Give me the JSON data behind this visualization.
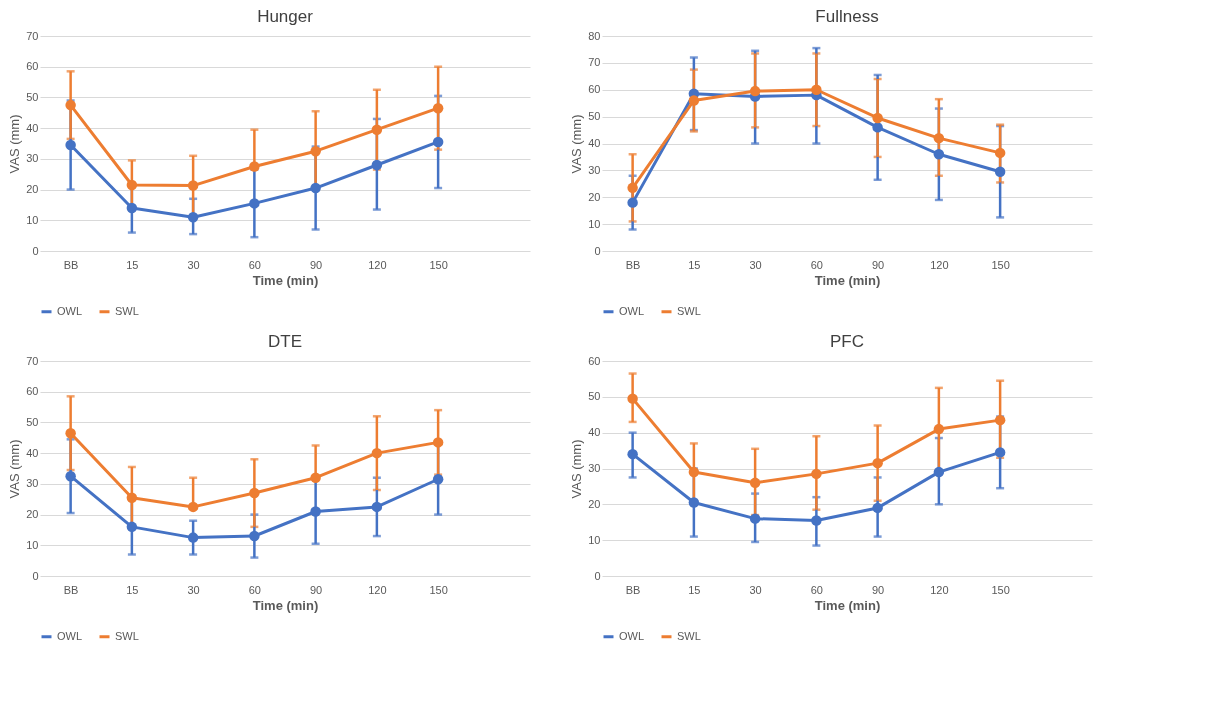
{
  "chart_data": [
    {
      "type": "line",
      "title": "Hunger",
      "xlabel": "Time (min)",
      "ylabel": "VAS (mm)",
      "categories": [
        "BB",
        "15",
        "30",
        "60",
        "90",
        "120",
        "150",
        null
      ],
      "ylim": [
        0,
        70
      ],
      "yticks": [
        0,
        10,
        20,
        30,
        40,
        50,
        60,
        70
      ],
      "grid": "y",
      "legend": "bottom",
      "marker": "circle",
      "line_style": "solid",
      "series": [
        {
          "name": "OWL",
          "color": "#4472c4",
          "values": [
            34.5,
            14,
            11,
            15.5,
            20.5,
            28,
            35.5,
            null
          ],
          "errors": [
            [
              20,
              49
            ],
            [
              6,
              22
            ],
            [
              5.5,
              17
            ],
            [
              4.5,
              26.5
            ],
            [
              7,
              34
            ],
            [
              13.5,
              43
            ],
            [
              20.5,
              50.5
            ],
            null
          ]
        },
        {
          "name": "SWL",
          "color": "#ed7d31",
          "values": [
            47.5,
            21.5,
            21.3,
            27.5,
            32.5,
            39.5,
            46.5,
            null
          ],
          "errors": [
            [
              36.5,
              58.5
            ],
            [
              13.5,
              29.5
            ],
            [
              11.5,
              31
            ],
            [
              27.5,
              39.5
            ],
            [
              20,
              45.5
            ],
            [
              26.5,
              52.5
            ],
            [
              33,
              60
            ],
            null
          ]
        }
      ]
    },
    {
      "type": "line",
      "title": "Fullness",
      "xlabel": "Time (min)",
      "ylabel": "VAS (mm)",
      "categories": [
        "BB",
        "15",
        "30",
        "60",
        "90",
        "120",
        "150",
        null
      ],
      "ylim": [
        0,
        80
      ],
      "yticks": [
        0,
        10,
        20,
        30,
        40,
        50,
        60,
        70,
        80
      ],
      "grid": "y",
      "legend": "bottom",
      "marker": "circle",
      "line_style": "solid",
      "series": [
        {
          "name": "OWL",
          "color": "#4472c4",
          "values": [
            18,
            58.5,
            57.5,
            58,
            46,
            36,
            29.5,
            null
          ],
          "errors": [
            [
              8,
              28
            ],
            [
              45,
              72
            ],
            [
              40,
              74.5
            ],
            [
              40,
              75.5
            ],
            [
              26.5,
              65.5
            ],
            [
              19,
              53
            ],
            [
              12.5,
              46.5
            ],
            null
          ]
        },
        {
          "name": "SWL",
          "color": "#ed7d31",
          "values": [
            23.5,
            56,
            59.5,
            60,
            49.5,
            42,
            36.5,
            null
          ],
          "errors": [
            [
              11,
              36
            ],
            [
              44.5,
              67.5
            ],
            [
              46,
              73.5
            ],
            [
              46.5,
              73.5
            ],
            [
              35,
              64
            ],
            [
              28,
              56.5
            ],
            [
              25.5,
              47
            ],
            null
          ]
        }
      ]
    },
    {
      "type": "line",
      "title": "DTE",
      "xlabel": "Time (min)",
      "ylabel": "VAS (mm)",
      "categories": [
        "BB",
        "15",
        "30",
        "60",
        "90",
        "120",
        "150",
        null
      ],
      "ylim": [
        0,
        70
      ],
      "yticks": [
        0,
        10,
        20,
        30,
        40,
        50,
        60,
        70
      ],
      "grid": "y",
      "legend": "bottom",
      "marker": "circle",
      "line_style": "solid",
      "series": [
        {
          "name": "OWL",
          "color": "#4472c4",
          "values": [
            32.5,
            16,
            12.5,
            13,
            21,
            22.5,
            31.5,
            null
          ],
          "errors": [
            [
              20.5,
              44.5
            ],
            [
              7,
              25
            ],
            [
              7,
              18
            ],
            [
              6,
              20
            ],
            [
              10.5,
              31.5
            ],
            [
              13,
              32
            ],
            [
              20,
              43
            ],
            null
          ]
        },
        {
          "name": "SWL",
          "color": "#ed7d31",
          "values": [
            46.5,
            25.5,
            22.5,
            27,
            32,
            40,
            43.5,
            null
          ],
          "errors": [
            [
              34.5,
              58.5
            ],
            [
              15.5,
              35.5
            ],
            [
              22.5,
              32
            ],
            [
              16,
              38
            ],
            [
              32,
              42.5
            ],
            [
              28,
              52
            ],
            [
              33,
              54
            ],
            null
          ]
        }
      ]
    },
    {
      "type": "line",
      "title": "PFC",
      "xlabel": "Time (min)",
      "ylabel": "VAS (mm)",
      "categories": [
        "BB",
        "15",
        "30",
        "60",
        "90",
        "120",
        "150",
        null
      ],
      "ylim": [
        0,
        60
      ],
      "yticks": [
        0,
        10,
        20,
        30,
        40,
        50,
        60
      ],
      "grid": "y",
      "legend": "bottom",
      "marker": "circle",
      "line_style": "solid",
      "series": [
        {
          "name": "OWL",
          "color": "#4472c4",
          "values": [
            34,
            20.5,
            16,
            15.5,
            19,
            29,
            34.5,
            null
          ],
          "errors": [
            [
              27.5,
              40
            ],
            [
              11,
              30
            ],
            [
              9.5,
              23
            ],
            [
              8.5,
              22
            ],
            [
              11,
              27.5
            ],
            [
              20,
              38.5
            ],
            [
              24.5,
              44.5
            ],
            null
          ]
        },
        {
          "name": "SWL",
          "color": "#ed7d31",
          "values": [
            49.5,
            29,
            26,
            28.5,
            31.5,
            41,
            43.5,
            null
          ],
          "errors": [
            [
              43,
              56.5
            ],
            [
              21,
              37
            ],
            [
              17,
              35.5
            ],
            [
              18.5,
              39
            ],
            [
              21,
              42
            ],
            [
              29.5,
              52.5
            ],
            [
              33,
              54.5
            ],
            null
          ]
        }
      ]
    }
  ]
}
